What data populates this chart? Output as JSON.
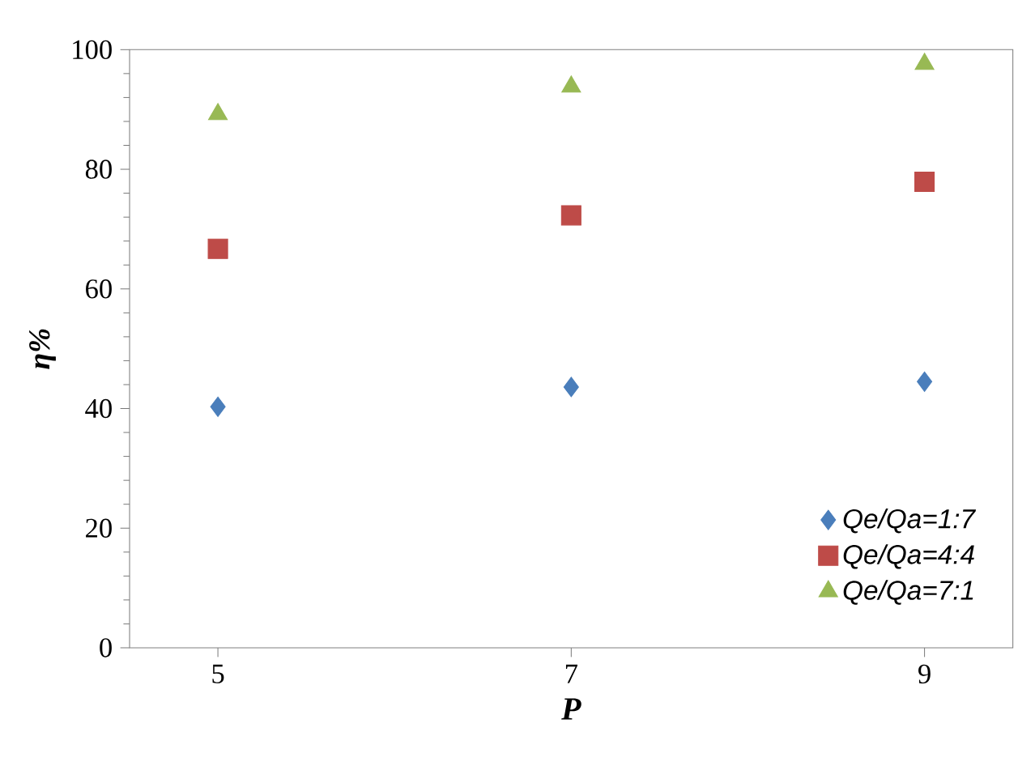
{
  "chart_data": {
    "type": "scatter",
    "xlabel": "P",
    "ylabel": "η%",
    "x": [
      5,
      7,
      9
    ],
    "xlim": [
      4.5,
      9.5
    ],
    "xticks": [
      5,
      7,
      9
    ],
    "ylim": [
      0,
      100
    ],
    "yticks": [
      0,
      20,
      40,
      60,
      80,
      100
    ],
    "series": [
      {
        "name": "Qe/Qa=1:7",
        "color": "#4a7ebb",
        "marker": "diamond",
        "values": [
          40.3,
          43.6,
          44.5
        ]
      },
      {
        "name": "Qe/Qa=4:4",
        "color": "#be4b48",
        "marker": "square",
        "values": [
          66.7,
          72.3,
          77.9
        ]
      },
      {
        "name": "Qe/Qa=7:1",
        "color": "#98b954",
        "marker": "triangle",
        "values": [
          89.2,
          93.8,
          97.6
        ]
      }
    ],
    "grid": false,
    "legend": "bottom right"
  }
}
